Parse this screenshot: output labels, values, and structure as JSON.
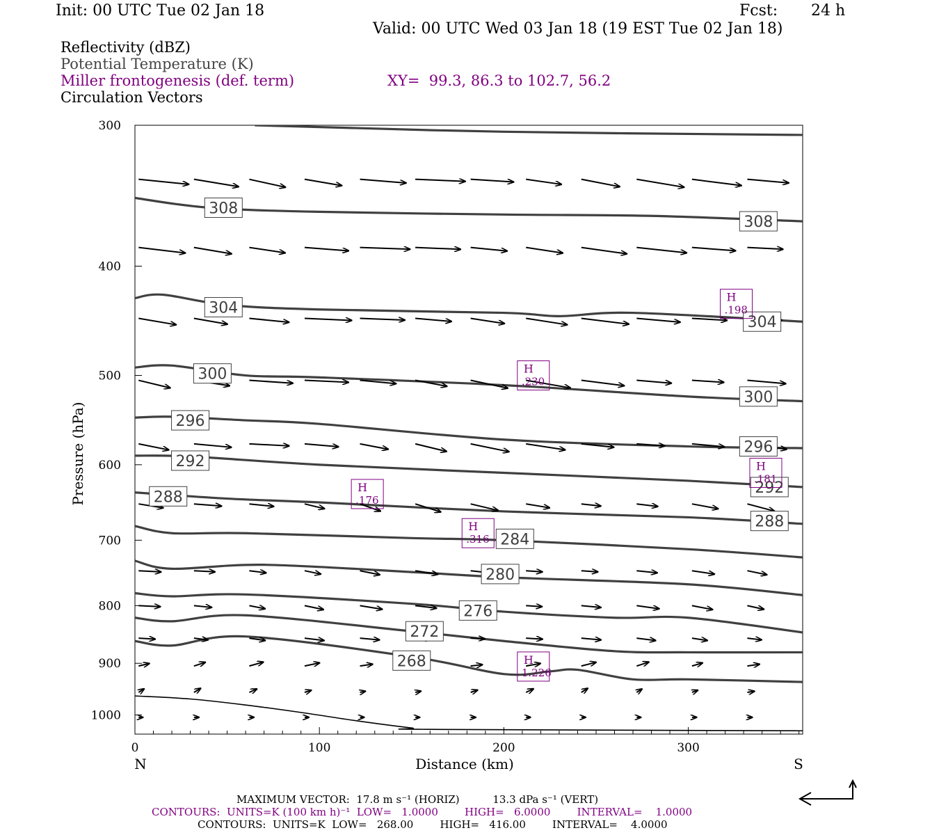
{
  "header": {
    "init": "Init: 00 UTC Tue 02 Jan 18",
    "fcst_label": "Fcst:",
    "fcst_value": "24 h",
    "valid": "Valid: 00 UTC Wed 03 Jan 18 (19 EST Tue 02 Jan 18)"
  },
  "legend": {
    "line1": "Reflectivity (dBZ)",
    "line2": "Potential Temperature (K)",
    "line3": "Miller frontogenesis (def. term)",
    "xy": "XY=  99.3, 86.3 to 102.7, 56.2",
    "line4": "Circulation Vectors"
  },
  "footer": {
    "max_vector": "MAXIMUM VECTOR:  17.8 m s⁻¹ (HORIZ)          13.3 dPa s⁻¹ (VERT)",
    "contours1": "CONTOURS:  UNITS=K (100 km h)⁻¹  LOW=   1.0000        HIGH=   6.0000        INTERVAL=    1.0000",
    "contours2": "CONTOURS:  UNITS=K  LOW=   268.00        HIGH=   416.00        INTERVAL=    4.0000"
  },
  "colors": {
    "theta": "#404040",
    "frontogenesis": "#800080",
    "vectors": "#000000"
  },
  "chart_data": {
    "type": "line",
    "xlabel": "Distance (km)",
    "ylabel": "Pressure (hPa)",
    "xlim": [
      0,
      362
    ],
    "ylim": [
      1040,
      300
    ],
    "y_scale": "log",
    "xticks": [
      0,
      100,
      200,
      300
    ],
    "yticks": [
      300,
      400,
      500,
      600,
      700,
      800,
      900,
      1000
    ],
    "x_end_labels": {
      "left": "N",
      "right": "S"
    },
    "theta_contours": [
      {
        "value": 308,
        "x": [
          0,
          40,
          100,
          200,
          280,
          362
        ],
        "p": [
          348,
          355,
          358,
          360,
          361,
          365
        ]
      },
      {
        "value": 304,
        "x": [
          0,
          15,
          50,
          100,
          200,
          230,
          270,
          362
        ],
        "p": [
          427,
          424,
          433,
          437,
          440,
          443,
          440,
          448
        ]
      },
      {
        "value": 300,
        "x": [
          0,
          20,
          60,
          100,
          200,
          300,
          362
        ],
        "p": [
          492,
          490,
          500,
          502,
          510,
          522,
          527
        ]
      },
      {
        "value": 296,
        "x": [
          0,
          20,
          60,
          100,
          200,
          300,
          362
        ],
        "p": [
          545,
          544,
          548,
          552,
          570,
          578,
          580
        ]
      },
      {
        "value": 292,
        "x": [
          0,
          30,
          100,
          200,
          300,
          362
        ],
        "p": [
          589,
          590,
          600,
          610,
          620,
          628
        ]
      },
      {
        "value": 288,
        "x": [
          0,
          50,
          100,
          200,
          300,
          362
        ],
        "p": [
          635,
          643,
          648,
          660,
          668,
          677
        ]
      },
      {
        "value": 284,
        "x": [
          0,
          20,
          60,
          150,
          200,
          300,
          362
        ],
        "p": [
          680,
          690,
          690,
          697,
          700,
          713,
          725
        ]
      },
      {
        "value": 280,
        "x": [
          0,
          20,
          70,
          150,
          200,
          300,
          362
        ],
        "p": [
          730,
          742,
          736,
          747,
          755,
          766,
          783
        ]
      },
      {
        "value": 276,
        "x": [
          0,
          20,
          60,
          150,
          200,
          260,
          300,
          362
        ],
        "p": [
          780,
          785,
          782,
          797,
          810,
          820,
          820,
          845
        ]
      },
      {
        "value": 272,
        "x": [
          0,
          20,
          60,
          150,
          200,
          260,
          300,
          362
        ],
        "p": [
          820,
          826,
          816,
          843,
          860,
          878,
          880,
          880
        ]
      },
      {
        "value": 268,
        "x": [
          0,
          20,
          60,
          150,
          200,
          225,
          240,
          270,
          300,
          362
        ],
        "p": [
          860,
          868,
          852,
          888,
          920,
          915,
          912,
          930,
          930,
          935
        ]
      }
    ],
    "theta_labels": [
      {
        "value": 308,
        "x": 48,
        "p": 355
      },
      {
        "value": 308,
        "x": 338,
        "p": 365
      },
      {
        "value": 304,
        "x": 48,
        "p": 435
      },
      {
        "value": 304,
        "x": 340,
        "p": 448
      },
      {
        "value": 300,
        "x": 42,
        "p": 498
      },
      {
        "value": 300,
        "x": 338,
        "p": 522
      },
      {
        "value": 296,
        "x": 30,
        "p": 548
      },
      {
        "value": 296,
        "x": 338,
        "p": 578
      },
      {
        "value": 292,
        "x": 30,
        "p": 595
      },
      {
        "value": 292,
        "x": 344,
        "p": 628
      },
      {
        "value": 288,
        "x": 18,
        "p": 640
      },
      {
        "value": 288,
        "x": 344,
        "p": 673
      },
      {
        "value": 284,
        "x": 206,
        "p": 698
      },
      {
        "value": 280,
        "x": 198,
        "p": 750
      },
      {
        "value": 276,
        "x": 186,
        "p": 808
      },
      {
        "value": 272,
        "x": 157,
        "p": 843
      },
      {
        "value": 268,
        "x": 150,
        "p": 895
      }
    ],
    "frontogenesis_highs": [
      {
        "label": "H",
        "value": ".198",
        "x": 326,
        "p": 432
      },
      {
        "label": "H",
        "value": ".230",
        "x": 216,
        "p": 500
      },
      {
        "label": "H",
        "value": ".181",
        "x": 342,
        "p": 610
      },
      {
        "label": "H",
        "value": ".176",
        "x": 126,
        "p": 637
      },
      {
        "label": "H",
        "value": ".316",
        "x": 186,
        "p": 690
      },
      {
        "label": "H",
        "value": "1.226",
        "x": 216,
        "p": 906
      }
    ],
    "surface_line": {
      "x": [
        0,
        30,
        60,
        90,
        120,
        150,
        160,
        362
      ],
      "p": [
        962,
        968,
        980,
        995,
        1012,
        1027,
        1030,
        1033
      ]
    },
    "vector_rows": [
      {
        "p": 335,
        "u": 1.0,
        "w": -0.1
      },
      {
        "p": 385,
        "u": 1.0,
        "w": -0.08
      },
      {
        "p": 445,
        "u": 0.95,
        "w": -0.08
      },
      {
        "p": 505,
        "u": 0.9,
        "w": -0.1
      },
      {
        "p": 575,
        "u": 0.8,
        "w": -0.1
      },
      {
        "p": 650,
        "u": 0.55,
        "w": -0.1
      },
      {
        "p": 745,
        "u": 0.45,
        "w": -0.05
      },
      {
        "p": 800,
        "u": 0.45,
        "w": -0.05
      },
      {
        "p": 855,
        "u": 0.4,
        "w": -0.03
      },
      {
        "p": 905,
        "u": 0.3,
        "w": 0.05
      },
      {
        "p": 955,
        "u": 0.15,
        "w": 0.05
      },
      {
        "p": 1005,
        "u": 0.1,
        "w": 0.0
      }
    ]
  }
}
